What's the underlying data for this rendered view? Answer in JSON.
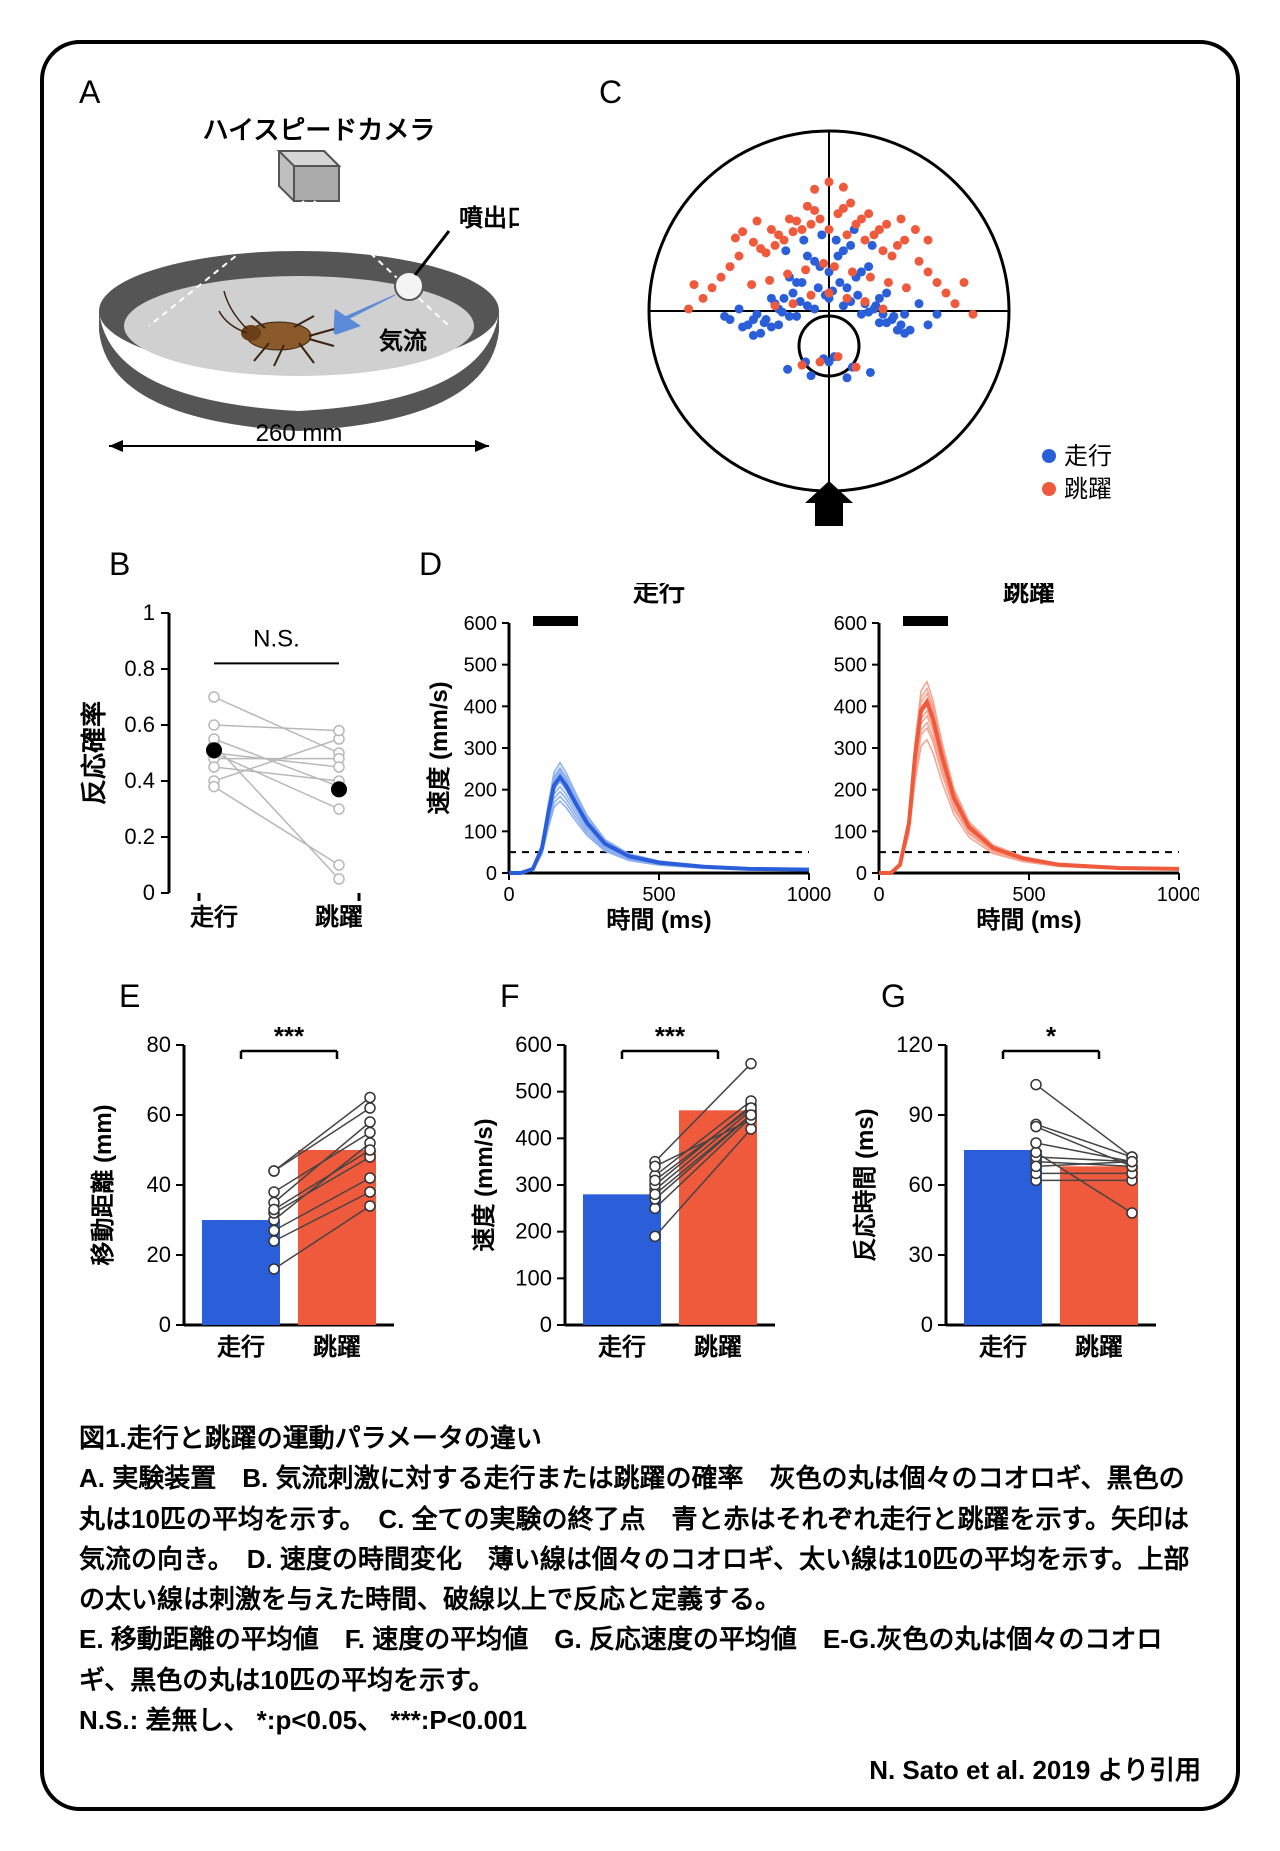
{
  "colors": {
    "blue": "#2b5fd9",
    "red": "#f05a3c",
    "light_blue": "#8aaef0",
    "light_red": "#f7a28f",
    "gray": "#b8b8b8",
    "black": "#000000",
    "arena_dark": "#555555",
    "arena_light": "#d0d0d0",
    "cricket_body": "#8b5a2b",
    "camera": "#bfbfbf",
    "arrow_blue": "#5a8ad8"
  },
  "panelA": {
    "label": "A",
    "camera_label": "ハイスピードカメラ",
    "nozzle_label": "噴出口",
    "airflow_label": "気流",
    "width_label": "260 mm"
  },
  "panelB": {
    "label": "B",
    "ylabel": "反応確率",
    "xlabels": [
      "走行",
      "跳躍"
    ],
    "sig": "N.S.",
    "ylim": [
      0,
      1
    ],
    "yticks": [
      0,
      0.2,
      0.4,
      0.6,
      0.8,
      1
    ],
    "pairs": [
      [
        0.53,
        0.05
      ],
      [
        0.7,
        0.5
      ],
      [
        0.48,
        0.48
      ],
      [
        0.45,
        0.4
      ],
      [
        0.4,
        0.55
      ],
      [
        0.55,
        0.38
      ],
      [
        0.6,
        0.58
      ],
      [
        0.5,
        0.3
      ],
      [
        0.38,
        0.1
      ],
      [
        0.5,
        0.45
      ]
    ],
    "means": [
      0.51,
      0.37
    ]
  },
  "panelC": {
    "label": "C",
    "legend": {
      "run": "走行",
      "jump": "跳躍"
    },
    "run_points": [
      [
        0,
        70
      ],
      [
        10,
        55
      ],
      [
        -15,
        60
      ],
      [
        20,
        40
      ],
      [
        -25,
        45
      ],
      [
        30,
        30
      ],
      [
        -35,
        25
      ],
      [
        5,
        85
      ],
      [
        -5,
        75
      ],
      [
        15,
        65
      ],
      [
        -20,
        50
      ],
      [
        25,
        35
      ],
      [
        -30,
        40
      ],
      [
        40,
        20
      ],
      [
        -40,
        30
      ],
      [
        8,
        90
      ],
      [
        -8,
        80
      ],
      [
        18,
        70
      ],
      [
        -18,
        60
      ],
      [
        28,
        45
      ],
      [
        -28,
        35
      ],
      [
        35,
        25
      ],
      [
        -45,
        20
      ],
      [
        12,
        95
      ],
      [
        -12,
        85
      ],
      [
        22,
        75
      ],
      [
        -22,
        65
      ],
      [
        32,
        50
      ],
      [
        -32,
        45
      ],
      [
        42,
        30
      ],
      [
        -42,
        25
      ],
      [
        6,
        60
      ],
      [
        -6,
        55
      ],
      [
        16,
        48
      ],
      [
        -16,
        42
      ],
      [
        26,
        38
      ],
      [
        -26,
        32
      ],
      [
        36,
        28
      ],
      [
        -36,
        22
      ],
      [
        45,
        15
      ],
      [
        -48,
        18
      ],
      [
        3,
        -10
      ],
      [
        -3,
        -12
      ],
      [
        13,
        -20
      ],
      [
        -13,
        -15
      ],
      [
        23,
        -25
      ],
      [
        -23,
        -22
      ],
      [
        10,
        -30
      ],
      [
        -10,
        -28
      ],
      [
        0,
        -15
      ],
      [
        50,
        40
      ],
      [
        -50,
        35
      ],
      [
        55,
        20
      ],
      [
        -55,
        25
      ],
      [
        60,
        30
      ],
      [
        -58,
        28
      ],
      [
        4,
        100
      ],
      [
        -4,
        105
      ],
      [
        14,
        110
      ],
      [
        -14,
        100
      ],
      [
        24,
        95
      ],
      [
        -24,
        90
      ],
      [
        0,
        45
      ],
      [
        8,
        38
      ],
      [
        -8,
        35
      ],
      [
        18,
        30
      ],
      [
        -18,
        28
      ],
      [
        28,
        22
      ],
      [
        -28,
        20
      ],
      [
        38,
        15
      ],
      [
        -38,
        12
      ],
      [
        2,
        52
      ],
      [
        -2,
        48
      ],
      [
        12,
        42
      ],
      [
        -12,
        38
      ],
      [
        22,
        32
      ],
      [
        -22,
        28
      ],
      [
        32,
        22
      ],
      [
        -32,
        18
      ],
      [
        42,
        12
      ],
      [
        -42,
        10
      ]
    ],
    "jump_points": [
      [
        0,
        110
      ],
      [
        10,
        105
      ],
      [
        -10,
        115
      ],
      [
        20,
        100
      ],
      [
        -20,
        108
      ],
      [
        30,
        90
      ],
      [
        -30,
        95
      ],
      [
        5,
        125
      ],
      [
        -5,
        120
      ],
      [
        15,
        115
      ],
      [
        -15,
        110
      ],
      [
        25,
        105
      ],
      [
        -25,
        100
      ],
      [
        35,
        85
      ],
      [
        -35,
        88
      ],
      [
        8,
        130
      ],
      [
        -8,
        128
      ],
      [
        18,
        120
      ],
      [
        -18,
        118
      ],
      [
        28,
        110
      ],
      [
        -28,
        105
      ],
      [
        38,
        95
      ],
      [
        -38,
        92
      ],
      [
        12,
        135
      ],
      [
        -12,
        132
      ],
      [
        22,
        125
      ],
      [
        -22,
        120
      ],
      [
        32,
        115
      ],
      [
        -32,
        110
      ],
      [
        42,
        100
      ],
      [
        -42,
        98
      ],
      [
        50,
        80
      ],
      [
        -50,
        85
      ],
      [
        55,
        70
      ],
      [
        -55,
        75
      ],
      [
        60,
        60
      ],
      [
        -60,
        65
      ],
      [
        65,
        50
      ],
      [
        -65,
        55
      ],
      [
        70,
        40
      ],
      [
        -70,
        45
      ],
      [
        0,
        50
      ],
      [
        10,
        45
      ],
      [
        -10,
        48
      ],
      [
        20,
        42
      ],
      [
        -20,
        40
      ],
      [
        30,
        35
      ],
      [
        -30,
        38
      ],
      [
        5,
        -10
      ],
      [
        -5,
        -15
      ],
      [
        15,
        -20
      ],
      [
        -15,
        -18
      ],
      [
        40,
        120
      ],
      [
        -40,
        118
      ],
      [
        48,
        110
      ],
      [
        -48,
        108
      ],
      [
        55,
        100
      ],
      [
        -52,
        102
      ],
      [
        0,
        155
      ],
      [
        8,
        150
      ],
      [
        -8,
        148
      ],
      [
        75,
        60
      ],
      [
        -75,
        58
      ],
      [
        80,
        30
      ],
      [
        -78,
        35
      ],
      [
        3,
        75
      ],
      [
        -3,
        78
      ],
      [
        13,
        70
      ],
      [
        -13,
        72
      ],
      [
        23,
        65
      ],
      [
        -23,
        68
      ],
      [
        33,
        60
      ],
      [
        -33,
        62
      ],
      [
        43,
        55
      ],
      [
        -43,
        58
      ]
    ]
  },
  "panelD": {
    "label": "D",
    "run_title": "走行",
    "jump_title": "跳躍",
    "ylabel": "速度 (mm/s)",
    "xlabel": "時間 (ms)",
    "ylim": [
      0,
      600
    ],
    "yticks": [
      0,
      100,
      200,
      300,
      400,
      500,
      600
    ],
    "xlim": [
      0,
      1000
    ],
    "xticks": [
      0,
      500,
      1000
    ],
    "threshold": 50,
    "stim_bar": [
      80,
      230
    ],
    "run_curve": [
      [
        0,
        0
      ],
      [
        40,
        0
      ],
      [
        80,
        10
      ],
      [
        110,
        60
      ],
      [
        130,
        140
      ],
      [
        150,
        210
      ],
      [
        170,
        230
      ],
      [
        190,
        210
      ],
      [
        220,
        170
      ],
      [
        260,
        120
      ],
      [
        320,
        70
      ],
      [
        400,
        40
      ],
      [
        500,
        25
      ],
      [
        650,
        15
      ],
      [
        800,
        10
      ],
      [
        1000,
        8
      ]
    ],
    "jump_curve": [
      [
        0,
        0
      ],
      [
        40,
        0
      ],
      [
        70,
        20
      ],
      [
        100,
        120
      ],
      [
        120,
        280
      ],
      [
        140,
        390
      ],
      [
        160,
        410
      ],
      [
        180,
        370
      ],
      [
        210,
        280
      ],
      [
        250,
        180
      ],
      [
        300,
        110
      ],
      [
        380,
        60
      ],
      [
        480,
        35
      ],
      [
        600,
        20
      ],
      [
        800,
        12
      ],
      [
        1000,
        10
      ]
    ],
    "run_traces_scale": [
      0.75,
      0.85,
      0.9,
      1.05,
      1.1,
      1.15,
      0.95,
      1.0,
      0.8,
      1.08
    ],
    "jump_traces_scale": [
      0.78,
      0.85,
      0.92,
      0.98,
      1.02,
      1.08,
      1.12,
      0.88,
      0.95,
      1.05
    ]
  },
  "panelE": {
    "label": "E",
    "ylabel": "移動距離 (mm)",
    "xlabels": [
      "走行",
      "跳躍"
    ],
    "sig": "***",
    "ylim": [
      0,
      80
    ],
    "yticks": [
      0,
      20,
      40,
      60,
      80
    ],
    "bars": [
      30,
      50
    ],
    "pairs": [
      [
        16,
        34
      ],
      [
        24,
        38
      ],
      [
        27,
        42
      ],
      [
        30,
        52
      ],
      [
        32,
        48
      ],
      [
        35,
        58
      ],
      [
        44,
        62
      ],
      [
        44,
        65
      ],
      [
        38,
        55
      ],
      [
        33,
        50
      ]
    ]
  },
  "panelF": {
    "label": "F",
    "ylabel": "速度 (mm/s)",
    "xlabels": [
      "走行",
      "跳躍"
    ],
    "sig": "***",
    "ylim": [
      0,
      600
    ],
    "yticks": [
      0,
      100,
      200,
      300,
      400,
      500,
      600
    ],
    "bars": [
      280,
      460
    ],
    "pairs": [
      [
        190,
        420
      ],
      [
        250,
        445
      ],
      [
        270,
        450
      ],
      [
        290,
        460
      ],
      [
        300,
        470
      ],
      [
        320,
        480
      ],
      [
        350,
        560
      ],
      [
        340,
        440
      ],
      [
        310,
        465
      ],
      [
        280,
        450
      ]
    ]
  },
  "panelG": {
    "label": "G",
    "ylabel": "反応時間 (ms)",
    "xlabels": [
      "走行",
      "跳躍"
    ],
    "sig": "*",
    "ylim": [
      0,
      120
    ],
    "yticks": [
      0,
      30,
      60,
      90,
      120
    ],
    "bars": [
      75,
      68
    ],
    "pairs": [
      [
        62,
        62
      ],
      [
        65,
        65
      ],
      [
        70,
        68
      ],
      [
        72,
        70
      ],
      [
        68,
        70
      ],
      [
        86,
        72
      ],
      [
        85,
        68
      ],
      [
        103,
        72
      ],
      [
        74,
        48
      ],
      [
        78,
        70
      ]
    ]
  },
  "caption": {
    "title": "図1.走行と跳躍の運動パラメータの違い",
    "lineA": "A. 実験装置　B. 気流刺激に対する走行または跳躍の確率　灰色の丸は個々のコオロギ、黒色の丸は10匹の平均を示す。　C. 全ての実験の終了点　青と赤はそれぞれ走行と跳躍を示す。矢印は気流の向き。　D. 速度の時間変化　薄い線は個々のコオロギ、太い線は10匹の平均を示す。上部の太い線は刺激を与えた時間、破線以上で反応と定義する。",
    "lineE": "E. 移動距離の平均値　F. 速度の平均値　G. 反応速度の平均値　E-G.灰色の丸は個々のコオロギ、黒色の丸は10匹の平均を示す。",
    "lineNS": "N.S.: 差無し、 *:p<0.05、 ***:P<0.001"
  },
  "attribution": "N. Sato et al. 2019 より引用"
}
